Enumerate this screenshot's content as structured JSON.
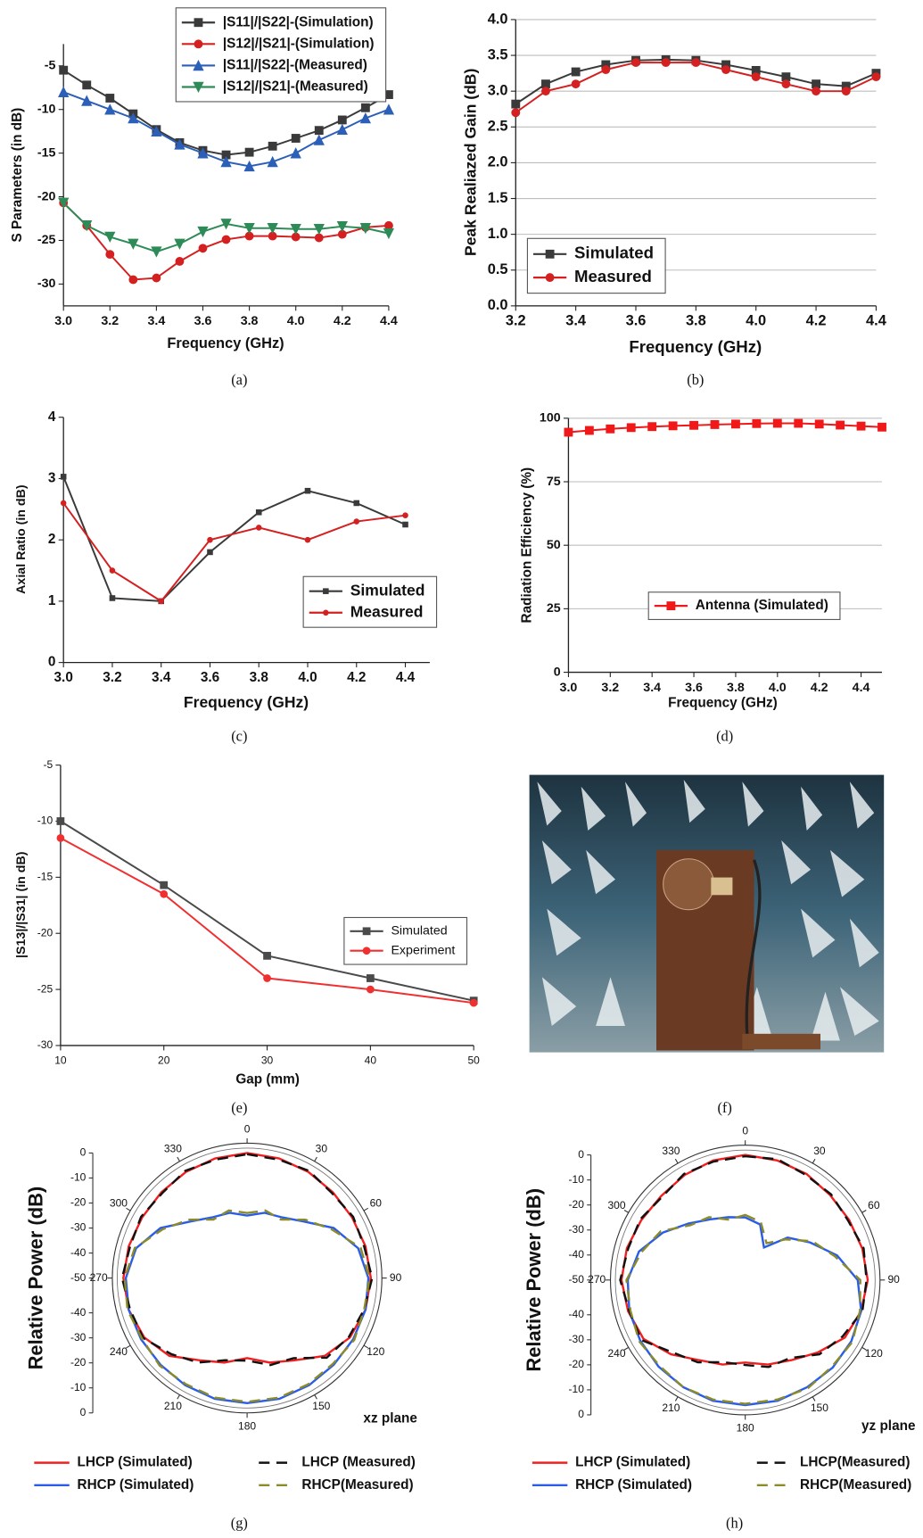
{
  "chart_data": [
    {
      "type": "line",
      "caption": "(a)",
      "xlabel": "Frequency (GHz)",
      "ylabel": "S Parameters (in dB)",
      "x": [
        3.0,
        3.1,
        3.2,
        3.3,
        3.4,
        3.5,
        3.6,
        3.7,
        3.8,
        3.9,
        4.0,
        4.1,
        4.2,
        4.3,
        4.4
      ],
      "xlim": [
        3.0,
        4.4
      ],
      "xticks": [
        {
          "value": 3.0,
          "label": "3.0"
        },
        3.2,
        3.4,
        3.6,
        3.8,
        {
          "value": 4.0,
          "label": "4.0"
        },
        4.2,
        4.4
      ],
      "ylim": [
        -32.5,
        -2.5
      ],
      "yticks": [
        -30,
        -25,
        -20,
        -15,
        -10,
        -5
      ],
      "grid": false,
      "legend": "top-right",
      "series": [
        {
          "name": "|S11|/|S22|-(Simulation)",
          "color": "#3a3a3a",
          "marker": "square",
          "values": [
            -5.5,
            -7.2,
            -8.7,
            -10.5,
            -12.3,
            -13.8,
            -14.7,
            -15.2,
            -14.9,
            -14.2,
            -13.3,
            -12.4,
            -11.2,
            -9.8,
            -8.3
          ]
        },
        {
          "name": "|S12|/|S21|-(Simulation)",
          "color": "#d42020",
          "marker": "circle",
          "values": [
            -20.7,
            -23.3,
            -26.6,
            -29.5,
            -29.3,
            -27.4,
            -25.9,
            -24.9,
            -24.5,
            -24.5,
            -24.6,
            -24.7,
            -24.3,
            -23.5,
            -23.3
          ]
        },
        {
          "name": "|S11|/|S22|-(Measured)",
          "color": "#2b5fb8",
          "marker": "triangle-up",
          "values": [
            -8,
            -9,
            -10,
            -11,
            -12.5,
            -14,
            -15,
            -16,
            -16.5,
            -16,
            -15,
            -13.5,
            -12.3,
            -11,
            -10
          ]
        },
        {
          "name": "|S12|/|S21|-(Measured)",
          "color": "#2e8b57",
          "marker": "triangle-down",
          "values": [
            -20.7,
            -23.3,
            -24.6,
            -25.4,
            -26.3,
            -25.4,
            -24,
            -23.1,
            -23.6,
            -23.6,
            -23.7,
            -23.7,
            -23.4,
            -23.6,
            -24.2
          ]
        }
      ]
    },
    {
      "type": "line",
      "caption": "(b)",
      "xlabel": "Frequency (GHz)",
      "ylabel": "Peak Realiazed Gain (dB)",
      "x": [
        3.2,
        3.3,
        3.4,
        3.5,
        3.6,
        3.7,
        3.8,
        3.9,
        4.0,
        4.1,
        4.2,
        4.3,
        4.4
      ],
      "xlim": [
        3.2,
        4.4
      ],
      "xticks": [
        3.2,
        3.4,
        3.6,
        3.8,
        {
          "value": 4.0,
          "label": "4.0"
        },
        4.2,
        4.4
      ],
      "ylim": [
        0,
        4
      ],
      "yticks": [
        {
          "value": 0,
          "label": "0.0"
        },
        0.5,
        {
          "value": 1,
          "label": "1.0"
        },
        1.5,
        {
          "value": 2,
          "label": "2.0"
        },
        2.5,
        {
          "value": 3,
          "label": "3.0"
        },
        3.5,
        {
          "value": 4,
          "label": "4.0"
        }
      ],
      "grid": true,
      "legend": "bottom-left",
      "series": [
        {
          "name": "Simulated",
          "color": "#3a3a3a",
          "marker": "square",
          "values": [
            2.82,
            3.1,
            3.27,
            3.37,
            3.43,
            3.44,
            3.43,
            3.37,
            3.29,
            3.2,
            3.1,
            3.07,
            3.25
          ]
        },
        {
          "name": "Measured",
          "color": "#d42020",
          "marker": "circle",
          "values": [
            2.7,
            3.0,
            3.1,
            3.3,
            3.4,
            3.4,
            3.4,
            3.3,
            3.2,
            3.1,
            3.0,
            3.0,
            3.2
          ]
        }
      ]
    },
    {
      "type": "line",
      "caption": "(c)",
      "xlabel": "Frequency (GHz)",
      "ylabel": "Axial Ratio (in dB)",
      "x": [
        3.0,
        3.2,
        3.4,
        3.6,
        3.8,
        4.0,
        4.2,
        4.4
      ],
      "xlim": [
        3.0,
        4.5
      ],
      "xticks": [
        {
          "value": 3.0,
          "label": "3.0"
        },
        3.2,
        3.4,
        3.6,
        3.8,
        {
          "value": 4.0,
          "label": "4.0"
        },
        4.2,
        4.4
      ],
      "ylim": [
        0,
        4
      ],
      "yticks": [
        0,
        1,
        2,
        3,
        4
      ],
      "grid": false,
      "legend": "bottom-right",
      "series": [
        {
          "name": "Simulated",
          "color": "#3a3a3a",
          "marker": "square",
          "values": [
            3.03,
            1.05,
            1.0,
            1.8,
            2.45,
            2.8,
            2.6,
            2.25
          ]
        },
        {
          "name": "Measured",
          "color": "#d42020",
          "marker": "circle",
          "values": [
            2.6,
            1.5,
            1.0,
            2.0,
            2.2,
            2.0,
            2.3,
            2.4
          ]
        }
      ]
    },
    {
      "type": "line",
      "caption": "(d)",
      "xlabel": "Frequency (GHz)",
      "ylabel": "Radiation Efficiency (%)",
      "x": [
        3.0,
        3.1,
        3.2,
        3.3,
        3.4,
        3.5,
        3.6,
        3.7,
        3.8,
        3.9,
        4.0,
        4.1,
        4.2,
        4.3,
        4.4,
        4.5
      ],
      "xlim": [
        3.0,
        4.5
      ],
      "xticks": [
        {
          "value": 3.0,
          "label": "3.0"
        },
        3.2,
        3.4,
        3.6,
        3.8,
        {
          "value": 4.0,
          "label": "4.0"
        },
        4.2,
        4.4
      ],
      "ylim": [
        0,
        100
      ],
      "yticks": [
        0,
        25,
        50,
        75,
        100
      ],
      "grid": true,
      "legend": "center",
      "series": [
        {
          "name": "Antenna (Simulated)",
          "color": "#f01818",
          "marker": "square",
          "values": [
            94.5,
            95.2,
            95.8,
            96.3,
            96.7,
            97,
            97.2,
            97.5,
            97.7,
            97.9,
            98,
            98,
            97.7,
            97.3,
            96.9,
            96.5
          ]
        }
      ]
    },
    {
      "type": "line",
      "caption": "(e)",
      "xlabel": "Gap (mm)",
      "ylabel": "|S13|/|S31| (in dB)",
      "x": [
        10,
        20,
        30,
        40,
        50
      ],
      "xlim": [
        10,
        50
      ],
      "xticks": [
        10,
        20,
        30,
        40,
        50
      ],
      "ylim": [
        -30,
        -5
      ],
      "yticks": [
        -30,
        -25,
        -20,
        -15,
        -10,
        -5
      ],
      "grid": false,
      "legend": "bottom-right",
      "series": [
        {
          "name": "Simulated",
          "color": "#4a4a4a",
          "marker": "square",
          "values": [
            -10,
            -15.7,
            -22,
            -24,
            -26
          ]
        },
        {
          "name": "Experiment",
          "color": "#f03030",
          "marker": "circle",
          "values": [
            -11.5,
            -16.5,
            -24,
            -25,
            -26.2
          ]
        }
      ]
    },
    {
      "type": "polar",
      "caption": "(g)",
      "ylabel": "Relative Power (dB)",
      "annotation": "xz plane",
      "angles": [
        0,
        15,
        30,
        45,
        60,
        75,
        90,
        105,
        120,
        135,
        150,
        165,
        180,
        195,
        210,
        225,
        240,
        255,
        270,
        285,
        300,
        315,
        330,
        345
      ],
      "rlim": [
        -50,
        0
      ],
      "rticks": [
        0,
        -10,
        -20,
        -30,
        -40,
        -50
      ],
      "thetaticks": [
        0,
        30,
        60,
        90,
        120,
        150,
        180,
        210,
        240,
        270,
        300,
        330
      ],
      "series": [
        {
          "name": "LHCP (Simulated)",
          "color": "#f02020",
          "dash": false,
          "values": [
            0,
            -0.5,
            -1,
            -1.5,
            -1.5,
            -1,
            -0.5,
            -1,
            -2.5,
            -6,
            -12,
            -15,
            -18,
            -15,
            -12,
            -6,
            -2.5,
            -1,
            -0.5,
            -1,
            -1.5,
            -1.5,
            -1,
            -0.5
          ]
        },
        {
          "name": "RHCP (Simulated)",
          "color": "#2a5ce8",
          "dash": false,
          "values": [
            -25,
            -23,
            -22,
            -18,
            -10,
            -4,
            -1.5,
            -1,
            -1,
            -1,
            -0.5,
            0,
            0,
            0,
            -0.5,
            -1,
            -1,
            -1,
            -1.5,
            -4,
            -10,
            -18,
            -22,
            -23
          ]
        },
        {
          "name": "LHCP (Measured)",
          "color": "#111111",
          "dash": true,
          "values": [
            -0.5,
            -1,
            -0.5,
            -2,
            -1,
            -1.5,
            0,
            -1.5,
            -3,
            -5,
            -13,
            -14,
            -17,
            -16,
            -11,
            -7,
            -2,
            -1.5,
            0,
            -1.5,
            -1,
            -2,
            -0.5,
            -1
          ]
        },
        {
          "name": "RHCP(Measured)",
          "color": "#8b8b2a",
          "dash": true,
          "values": [
            -24,
            -22,
            -23,
            -17,
            -11,
            -3,
            -1,
            -1.5,
            -0.5,
            -1.5,
            -1,
            -0.5,
            -0.5,
            -0.5,
            -1,
            -0.5,
            -1.5,
            -0.5,
            -1,
            -3.5,
            -11,
            -17,
            -23,
            -22
          ]
        }
      ]
    },
    {
      "type": "polar",
      "caption": "(h)",
      "ylabel": "Relative Power (dB)",
      "annotation": "yz plane",
      "angles": [
        0,
        15,
        30,
        45,
        60,
        75,
        90,
        105,
        120,
        135,
        150,
        165,
        180,
        195,
        210,
        225,
        240,
        255,
        270,
        285,
        300,
        315,
        330,
        345
      ],
      "rlim": [
        -50,
        0
      ],
      "rticks": [
        0,
        -10,
        -20,
        -30,
        -40,
        -50
      ],
      "thetaticks": [
        0,
        30,
        60,
        90,
        120,
        150,
        180,
        210,
        240,
        270,
        300,
        330
      ],
      "series": [
        {
          "name": "LHCP (Simulated)",
          "color": "#f02020",
          "dash": false,
          "values": [
            0,
            -0.5,
            -1,
            -2,
            -2,
            -1.5,
            -1,
            -2,
            -4,
            -9,
            -13,
            -15,
            -17,
            -15,
            -13,
            -8,
            -3,
            -1.5,
            -0.5,
            -1,
            -2,
            -2.5,
            -1.5,
            -0.5
          ]
        },
        {
          "name": "RHCP (Simulated)",
          "color": "#2a5ce8",
          "dash": false,
          "values": [
            -25,
            -27,
            -35,
            -26,
            -20,
            -12,
            -5,
            -2,
            -1,
            -0.5,
            -0.5,
            0,
            0,
            0,
            -0.5,
            -1,
            -1.5,
            -2,
            -3,
            -6,
            -12,
            -18,
            -22,
            -24
          ]
        },
        {
          "name": "LHCP(Measured)",
          "color": "#111111",
          "dash": true,
          "values": [
            -0.5,
            0,
            -1.5,
            -1.5,
            -2.5,
            -1,
            -1.5,
            -1.5,
            -5,
            -8,
            -14,
            -14,
            -16,
            -16,
            -12,
            -9,
            -2,
            -2,
            0,
            -1.5,
            -1.5,
            -3,
            -1,
            -1
          ]
        },
        {
          "name": "RHCP(Measured)",
          "color": "#8b8b2a",
          "dash": true,
          "values": [
            -24,
            -26,
            -33,
            -27,
            -19,
            -13,
            -4,
            -2.5,
            -0.5,
            -1,
            0,
            -0.5,
            -0.5,
            -0.5,
            -0.5,
            -1.5,
            -1,
            -2.5,
            -2.5,
            -7,
            -11,
            -19,
            -21,
            -25
          ]
        }
      ]
    }
  ],
  "photo": {
    "caption": "(f)"
  }
}
